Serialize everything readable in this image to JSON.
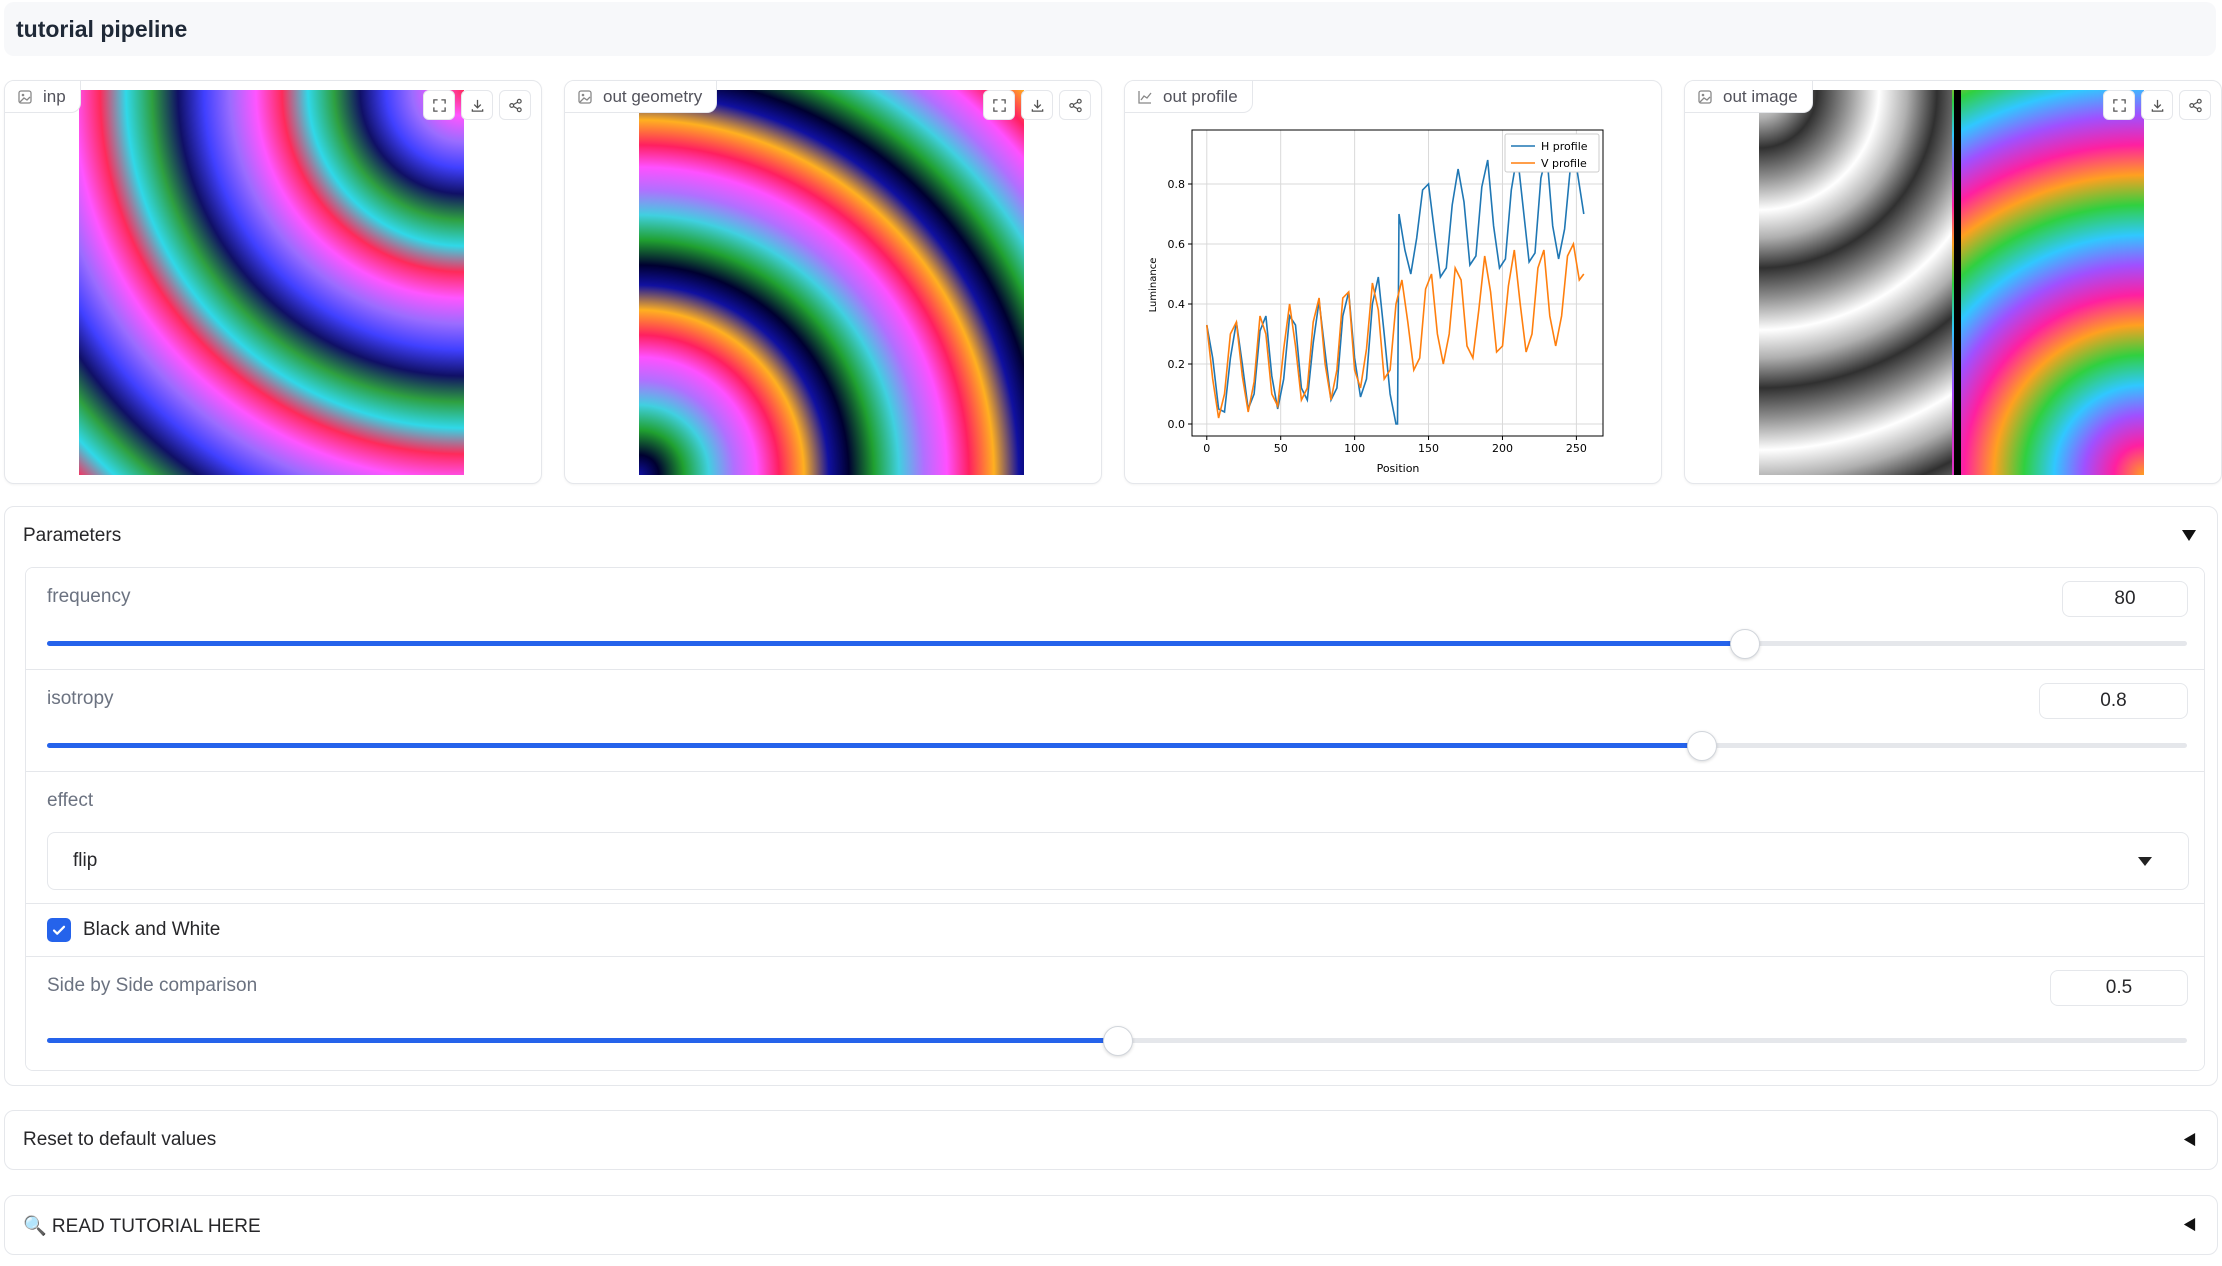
{
  "app": {
    "title": "tutorial pipeline"
  },
  "panels": [
    {
      "label": "inp",
      "type": "image"
    },
    {
      "label": "out geometry",
      "type": "image"
    },
    {
      "label": "out profile",
      "type": "plot"
    },
    {
      "label": "out image",
      "type": "image"
    }
  ],
  "toolbar_icons": [
    "fullscreen-icon",
    "download-icon",
    "share-icon"
  ],
  "chart_data": {
    "type": "line",
    "title": "",
    "xlabel": "Position",
    "ylabel": "Luminance",
    "xlim": [
      -10,
      268
    ],
    "ylim": [
      -0.04,
      0.98
    ],
    "xticks": [
      0,
      50,
      100,
      150,
      200,
      250
    ],
    "yticks": [
      0.0,
      0.2,
      0.4,
      0.6,
      0.8
    ],
    "xticklabels": [
      "0",
      "50",
      "100",
      "150",
      "200",
      "250"
    ],
    "yticklabels": [
      "0.0",
      "0.2",
      "0.4",
      "0.6",
      "0.8"
    ],
    "grid": true,
    "legend_position": "top-right",
    "series": [
      {
        "name": "H profile",
        "color": "#1f77b4",
        "x": [
          0,
          4,
          8,
          12,
          16,
          20,
          24,
          28,
          32,
          36,
          40,
          44,
          48,
          52,
          56,
          60,
          64,
          68,
          72,
          76,
          80,
          84,
          88,
          92,
          96,
          100,
          104,
          108,
          112,
          116,
          120,
          124,
          128,
          129,
          130,
          134,
          138,
          142,
          146,
          150,
          154,
          158,
          162,
          166,
          170,
          174,
          178,
          182,
          186,
          190,
          194,
          198,
          202,
          206,
          210,
          214,
          218,
          222,
          226,
          230,
          234,
          238,
          242,
          246,
          250,
          255
        ],
        "y": [
          0.33,
          0.22,
          0.05,
          0.04,
          0.22,
          0.34,
          0.2,
          0.05,
          0.1,
          0.31,
          0.36,
          0.16,
          0.05,
          0.15,
          0.36,
          0.33,
          0.12,
          0.08,
          0.27,
          0.41,
          0.24,
          0.08,
          0.12,
          0.36,
          0.44,
          0.22,
          0.09,
          0.15,
          0.4,
          0.49,
          0.3,
          0.1,
          0.0,
          0.0,
          0.7,
          0.58,
          0.5,
          0.62,
          0.78,
          0.8,
          0.64,
          0.49,
          0.52,
          0.73,
          0.85,
          0.74,
          0.53,
          0.56,
          0.79,
          0.88,
          0.66,
          0.52,
          0.55,
          0.78,
          0.9,
          0.72,
          0.54,
          0.57,
          0.82,
          0.9,
          0.66,
          0.55,
          0.65,
          0.86,
          0.86,
          0.7
        ]
      },
      {
        "name": "V profile",
        "color": "#ff7f0e",
        "x": [
          0,
          4,
          8,
          12,
          16,
          20,
          24,
          28,
          32,
          36,
          40,
          44,
          48,
          52,
          56,
          60,
          64,
          68,
          72,
          76,
          80,
          84,
          88,
          92,
          96,
          100,
          104,
          108,
          112,
          116,
          120,
          124,
          128,
          132,
          136,
          140,
          144,
          148,
          152,
          156,
          160,
          164,
          168,
          172,
          176,
          180,
          184,
          188,
          192,
          196,
          200,
          204,
          208,
          212,
          216,
          220,
          224,
          228,
          232,
          236,
          240,
          244,
          248,
          252,
          255
        ],
        "y": [
          0.33,
          0.15,
          0.02,
          0.1,
          0.3,
          0.34,
          0.16,
          0.04,
          0.14,
          0.36,
          0.3,
          0.1,
          0.06,
          0.25,
          0.4,
          0.26,
          0.08,
          0.12,
          0.34,
          0.42,
          0.2,
          0.08,
          0.18,
          0.42,
          0.44,
          0.18,
          0.12,
          0.25,
          0.47,
          0.38,
          0.15,
          0.18,
          0.4,
          0.48,
          0.34,
          0.18,
          0.22,
          0.45,
          0.5,
          0.3,
          0.2,
          0.3,
          0.52,
          0.48,
          0.26,
          0.22,
          0.38,
          0.56,
          0.44,
          0.24,
          0.26,
          0.46,
          0.58,
          0.4,
          0.24,
          0.3,
          0.52,
          0.58,
          0.36,
          0.26,
          0.36,
          0.56,
          0.6,
          0.48,
          0.5
        ]
      }
    ]
  },
  "parameters": {
    "heading": "Parameters",
    "frequency": {
      "label": "frequency",
      "value": "80",
      "fraction": 0.793
    },
    "isotropy": {
      "label": "isotropy",
      "value": "0.8",
      "fraction": 0.773
    },
    "effect": {
      "label": "effect",
      "value": "flip"
    },
    "bw": {
      "label": "Black and White",
      "checked": true
    },
    "sbs": {
      "label": "Side by Side comparison",
      "value": "0.5",
      "fraction": 0.5
    }
  },
  "accordions": {
    "reset": "Reset to default values",
    "tutorial": "🔍 READ TUTORIAL HERE"
  },
  "colors": {
    "accent": "#2563eb",
    "border": "#e5e7eb"
  }
}
